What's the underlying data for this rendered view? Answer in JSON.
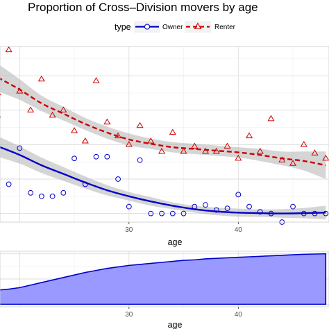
{
  "chart_data": [
    {
      "type": "scatter",
      "title": "Proportion of Cross–Division movers by age",
      "xlabel": "age",
      "ylabel": "",
      "xlim": [
        18.2,
        48.3
      ],
      "ylim": [
        0.5,
        10.7
      ],
      "xticks": [
        30,
        40
      ],
      "grid": true,
      "legend": {
        "title": "type",
        "position": "top"
      },
      "series": [
        {
          "name": "Owner",
          "color": "#0000cc",
          "marker": "circle",
          "line": "solid",
          "points": [
            {
              "x": 18,
              "y": 6.6
            },
            {
              "x": 19,
              "y": 2.7
            },
            {
              "x": 20,
              "y": 4.8
            },
            {
              "x": 21,
              "y": 2.2
            },
            {
              "x": 22,
              "y": 2.0
            },
            {
              "x": 23,
              "y": 2.0
            },
            {
              "x": 24,
              "y": 2.2
            },
            {
              "x": 25,
              "y": 4.2
            },
            {
              "x": 26,
              "y": 2.7
            },
            {
              "x": 27,
              "y": 4.3
            },
            {
              "x": 28,
              "y": 4.3
            },
            {
              "x": 29,
              "y": 3.0
            },
            {
              "x": 30,
              "y": 1.4
            },
            {
              "x": 31,
              "y": 4.1
            },
            {
              "x": 32,
              "y": 1.0
            },
            {
              "x": 33,
              "y": 1.0
            },
            {
              "x": 34,
              "y": 1.0
            },
            {
              "x": 35,
              "y": 1.0
            },
            {
              "x": 36,
              "y": 1.4
            },
            {
              "x": 37,
              "y": 1.5
            },
            {
              "x": 38,
              "y": 1.2
            },
            {
              "x": 39,
              "y": 1.3
            },
            {
              "x": 40,
              "y": 2.1
            },
            {
              "x": 41,
              "y": 1.4
            },
            {
              "x": 42,
              "y": 1.1
            },
            {
              "x": 43,
              "y": 1.0
            },
            {
              "x": 44,
              "y": 0.5
            },
            {
              "x": 45,
              "y": 1.4
            },
            {
              "x": 46,
              "y": 1.0
            },
            {
              "x": 47,
              "y": 1.0
            },
            {
              "x": 48,
              "y": 1.0
            }
          ],
          "smooth": {
            "x": [
              18,
              20,
              22,
              24,
              26,
              28,
              30,
              32,
              34,
              36,
              38,
              40,
              42,
              44,
              46,
              48
            ],
            "y": [
              4.9,
              4.4,
              3.8,
              3.3,
              2.8,
              2.35,
              2.0,
              1.7,
              1.45,
              1.25,
              1.12,
              1.05,
              1.02,
              1.0,
              1.02,
              1.05
            ],
            "ymin": [
              4.3,
              3.9,
              3.35,
              2.9,
              2.45,
              2.05,
              1.75,
              1.45,
              1.25,
              1.05,
              0.9,
              0.82,
              0.8,
              0.75,
              0.72,
              0.65
            ],
            "ymax": [
              5.5,
              4.9,
              4.25,
              3.7,
              3.15,
              2.65,
              2.25,
              1.95,
              1.65,
              1.45,
              1.34,
              1.28,
              1.24,
              1.25,
              1.32,
              1.45
            ]
          }
        },
        {
          "name": "Renter",
          "color": "#cc0000",
          "marker": "triangle",
          "line": "dashed",
          "points": [
            {
              "x": 18,
              "y": 8.0
            },
            {
              "x": 19,
              "y": 10.5
            },
            {
              "x": 20,
              "y": 8.1
            },
            {
              "x": 21,
              "y": 7.0
            },
            {
              "x": 22,
              "y": 8.8
            },
            {
              "x": 23,
              "y": 6.7
            },
            {
              "x": 24,
              "y": 7.0
            },
            {
              "x": 25,
              "y": 5.8
            },
            {
              "x": 26,
              "y": 5.2
            },
            {
              "x": 27,
              "y": 8.7
            },
            {
              "x": 28,
              "y": 6.3
            },
            {
              "x": 29,
              "y": 5.5
            },
            {
              "x": 30,
              "y": 5.0
            },
            {
              "x": 31,
              "y": 6.1
            },
            {
              "x": 32,
              "y": 5.2
            },
            {
              "x": 33,
              "y": 4.6
            },
            {
              "x": 34,
              "y": 5.7
            },
            {
              "x": 35,
              "y": 4.6
            },
            {
              "x": 36,
              "y": 4.9
            },
            {
              "x": 37,
              "y": 4.6
            },
            {
              "x": 38,
              "y": 4.6
            },
            {
              "x": 39,
              "y": 4.9
            },
            {
              "x": 40,
              "y": 4.2
            },
            {
              "x": 41,
              "y": 5.5
            },
            {
              "x": 42,
              "y": 4.6
            },
            {
              "x": 43,
              "y": 6.5
            },
            {
              "x": 44,
              "y": 4.1
            },
            {
              "x": 45,
              "y": 3.9
            },
            {
              "x": 46,
              "y": 5.0
            },
            {
              "x": 47,
              "y": 4.5
            },
            {
              "x": 48,
              "y": 4.2
            }
          ],
          "smooth": {
            "x": [
              18,
              20,
              22,
              24,
              26,
              28,
              30,
              32,
              34,
              36,
              38,
              40,
              42,
              44,
              46,
              48
            ],
            "y": [
              8.9,
              8.2,
              7.4,
              6.8,
              6.2,
              5.7,
              5.3,
              5.05,
              4.85,
              4.75,
              4.65,
              4.55,
              4.4,
              4.2,
              4.05,
              3.8
            ],
            "ymin": [
              8.1,
              7.6,
              6.95,
              6.4,
              5.85,
              5.35,
              4.95,
              4.75,
              4.55,
              4.45,
              4.35,
              4.25,
              4.05,
              3.8,
              3.5,
              3.0
            ],
            "ymax": [
              9.7,
              8.8,
              7.85,
              7.2,
              6.55,
              6.05,
              5.65,
              5.35,
              5.15,
              5.05,
              4.95,
              4.85,
              4.75,
              4.6,
              4.6,
              4.6
            ]
          }
        }
      ]
    },
    {
      "type": "area",
      "xlabel": "age",
      "xlim": [
        18.2,
        48.3
      ],
      "ylim": [
        -0.05,
        1.05
      ],
      "xticks": [
        30,
        40
      ],
      "grid": true,
      "color": "#9999ff",
      "x": [
        18,
        19,
        20,
        21,
        22,
        23,
        24,
        25,
        26,
        27,
        28,
        29,
        30,
        31,
        32,
        33,
        34,
        35,
        36,
        37,
        38,
        39,
        40,
        41,
        42,
        43,
        44,
        45,
        46,
        47,
        48
      ],
      "y": [
        0.28,
        0.3,
        0.33,
        0.38,
        0.43,
        0.48,
        0.53,
        0.58,
        0.63,
        0.67,
        0.71,
        0.74,
        0.77,
        0.79,
        0.81,
        0.83,
        0.85,
        0.87,
        0.88,
        0.9,
        0.91,
        0.92,
        0.93,
        0.94,
        0.95,
        0.96,
        0.97,
        0.98,
        0.99,
        0.995,
        1.0
      ]
    }
  ]
}
